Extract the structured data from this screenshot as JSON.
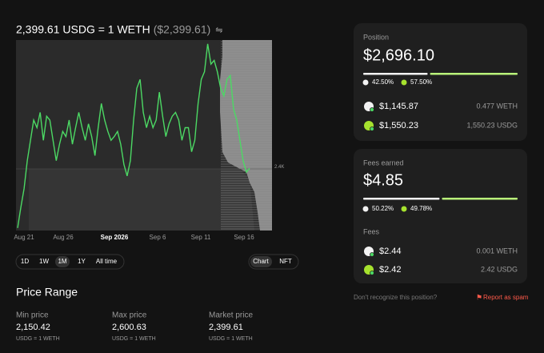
{
  "header": {
    "price": "2,399.61 USDG = 1 WETH",
    "usd": "($2,399.61)"
  },
  "chart": {
    "type": "line",
    "color": "#4cd964",
    "x_labels": [
      "Aug 21",
      "Aug 26",
      "Sep 2026",
      "Sep 6",
      "Sep 11",
      "Sep 16"
    ],
    "ylim": [
      2350,
      2500
    ],
    "yticks": [
      {
        "value": 2400,
        "label": "2.4K"
      }
    ],
    "values": [
      2352,
      2368,
      2383,
      2405,
      2421,
      2437,
      2431,
      2443,
      2421,
      2440,
      2437,
      2421,
      2405,
      2418,
      2428,
      2424,
      2437,
      2418,
      2431,
      2443,
      2431,
      2421,
      2434,
      2424,
      2409,
      2431,
      2450,
      2437,
      2428,
      2421,
      2424,
      2428,
      2418,
      2402,
      2393,
      2405,
      2437,
      2462,
      2469,
      2443,
      2431,
      2440,
      2431,
      2437,
      2459,
      2440,
      2424,
      2434,
      2440,
      2443,
      2437,
      2421,
      2431,
      2431,
      2412,
      2421,
      2450,
      2469,
      2475,
      2497,
      2481,
      2484,
      2475,
      2462,
      2456,
      2469,
      2472,
      2446,
      2437,
      2421,
      2405,
      2396,
      2399
    ]
  },
  "timeframes": [
    "1D",
    "1W",
    "1M",
    "1Y",
    "All time"
  ],
  "views": [
    "Chart",
    "NFT"
  ],
  "price_range": {
    "title": "Price Range",
    "items": [
      {
        "label": "Min price",
        "value": "2,150.42",
        "unit": "USDG = 1 WETH"
      },
      {
        "label": "Max price",
        "value": "2,600.63",
        "unit": "USDG = 1 WETH"
      },
      {
        "label": "Market price",
        "value": "2,399.61",
        "unit": "USDG = 1 WETH"
      }
    ]
  },
  "position": {
    "title": "Position",
    "total": "$2,696.10",
    "shares": [
      {
        "value": 42.5,
        "label": "42.50%"
      },
      {
        "value": 57.5,
        "label": "57.50%"
      }
    ],
    "rows": [
      {
        "usd": "$1,145.87",
        "amount": "0.477 WETH"
      },
      {
        "usd": "$1,550.23",
        "amount": "1,550.23 USDG"
      }
    ]
  },
  "fees": {
    "title": "Fees earned",
    "total": "$4.85",
    "shares": [
      {
        "value": 50.22,
        "label": "50.22%"
      },
      {
        "value": 49.78,
        "label": "49.78%"
      }
    ],
    "subtitle": "Fees",
    "rows": [
      {
        "usd": "$2.44",
        "amount": "0.001 WETH"
      },
      {
        "usd": "$2.42",
        "amount": "2.42 USDG"
      }
    ]
  },
  "footer": {
    "question": "Don't recognize this position?",
    "report": "Report as spam"
  }
}
